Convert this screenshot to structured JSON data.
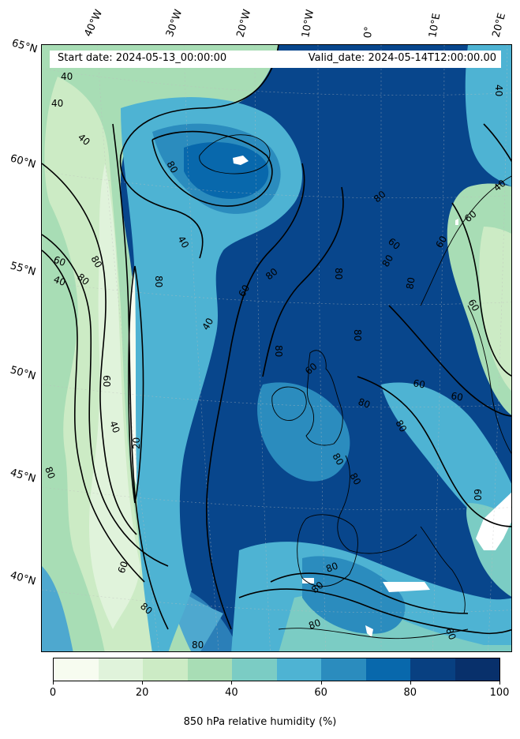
{
  "header": {
    "start_date": "Start date: 2024-05-13_00:00:00",
    "valid_date": "Valid_date: 2024-05-14T12:00:00.00"
  },
  "longitude_labels": [
    "40°W",
    "30°W",
    "20°W",
    "10°W",
    "0°",
    "10°E",
    "20°E"
  ],
  "latitude_labels": [
    "65°N",
    "60°N",
    "55°N",
    "50°N",
    "45°N",
    "40°N"
  ],
  "contour_labels": [
    "40",
    "40",
    "40",
    "80",
    "40",
    "80",
    "60",
    "80",
    "80",
    "60",
    "40",
    "40",
    "80",
    "80",
    "60",
    "20",
    "40",
    "80",
    "60",
    "80",
    "80",
    "80",
    "60",
    "60",
    "80",
    "80",
    "80",
    "80",
    "60",
    "40",
    "40",
    "60",
    "60",
    "80",
    "80",
    "60",
    "80",
    "60",
    "60",
    "80",
    "80",
    "80",
    "80",
    "80"
  ],
  "colorbar": {
    "colors": [
      "#f7fcf0",
      "#e0f3db",
      "#ccebc5",
      "#a8ddb5",
      "#7bccc4",
      "#4eb3d3",
      "#2b8cbe",
      "#0868ac",
      "#084081",
      "#08306b"
    ],
    "ticks": [
      "0",
      "20",
      "40",
      "60",
      "80",
      "100"
    ],
    "label": "850 hPa relative humidity (%)"
  }
}
